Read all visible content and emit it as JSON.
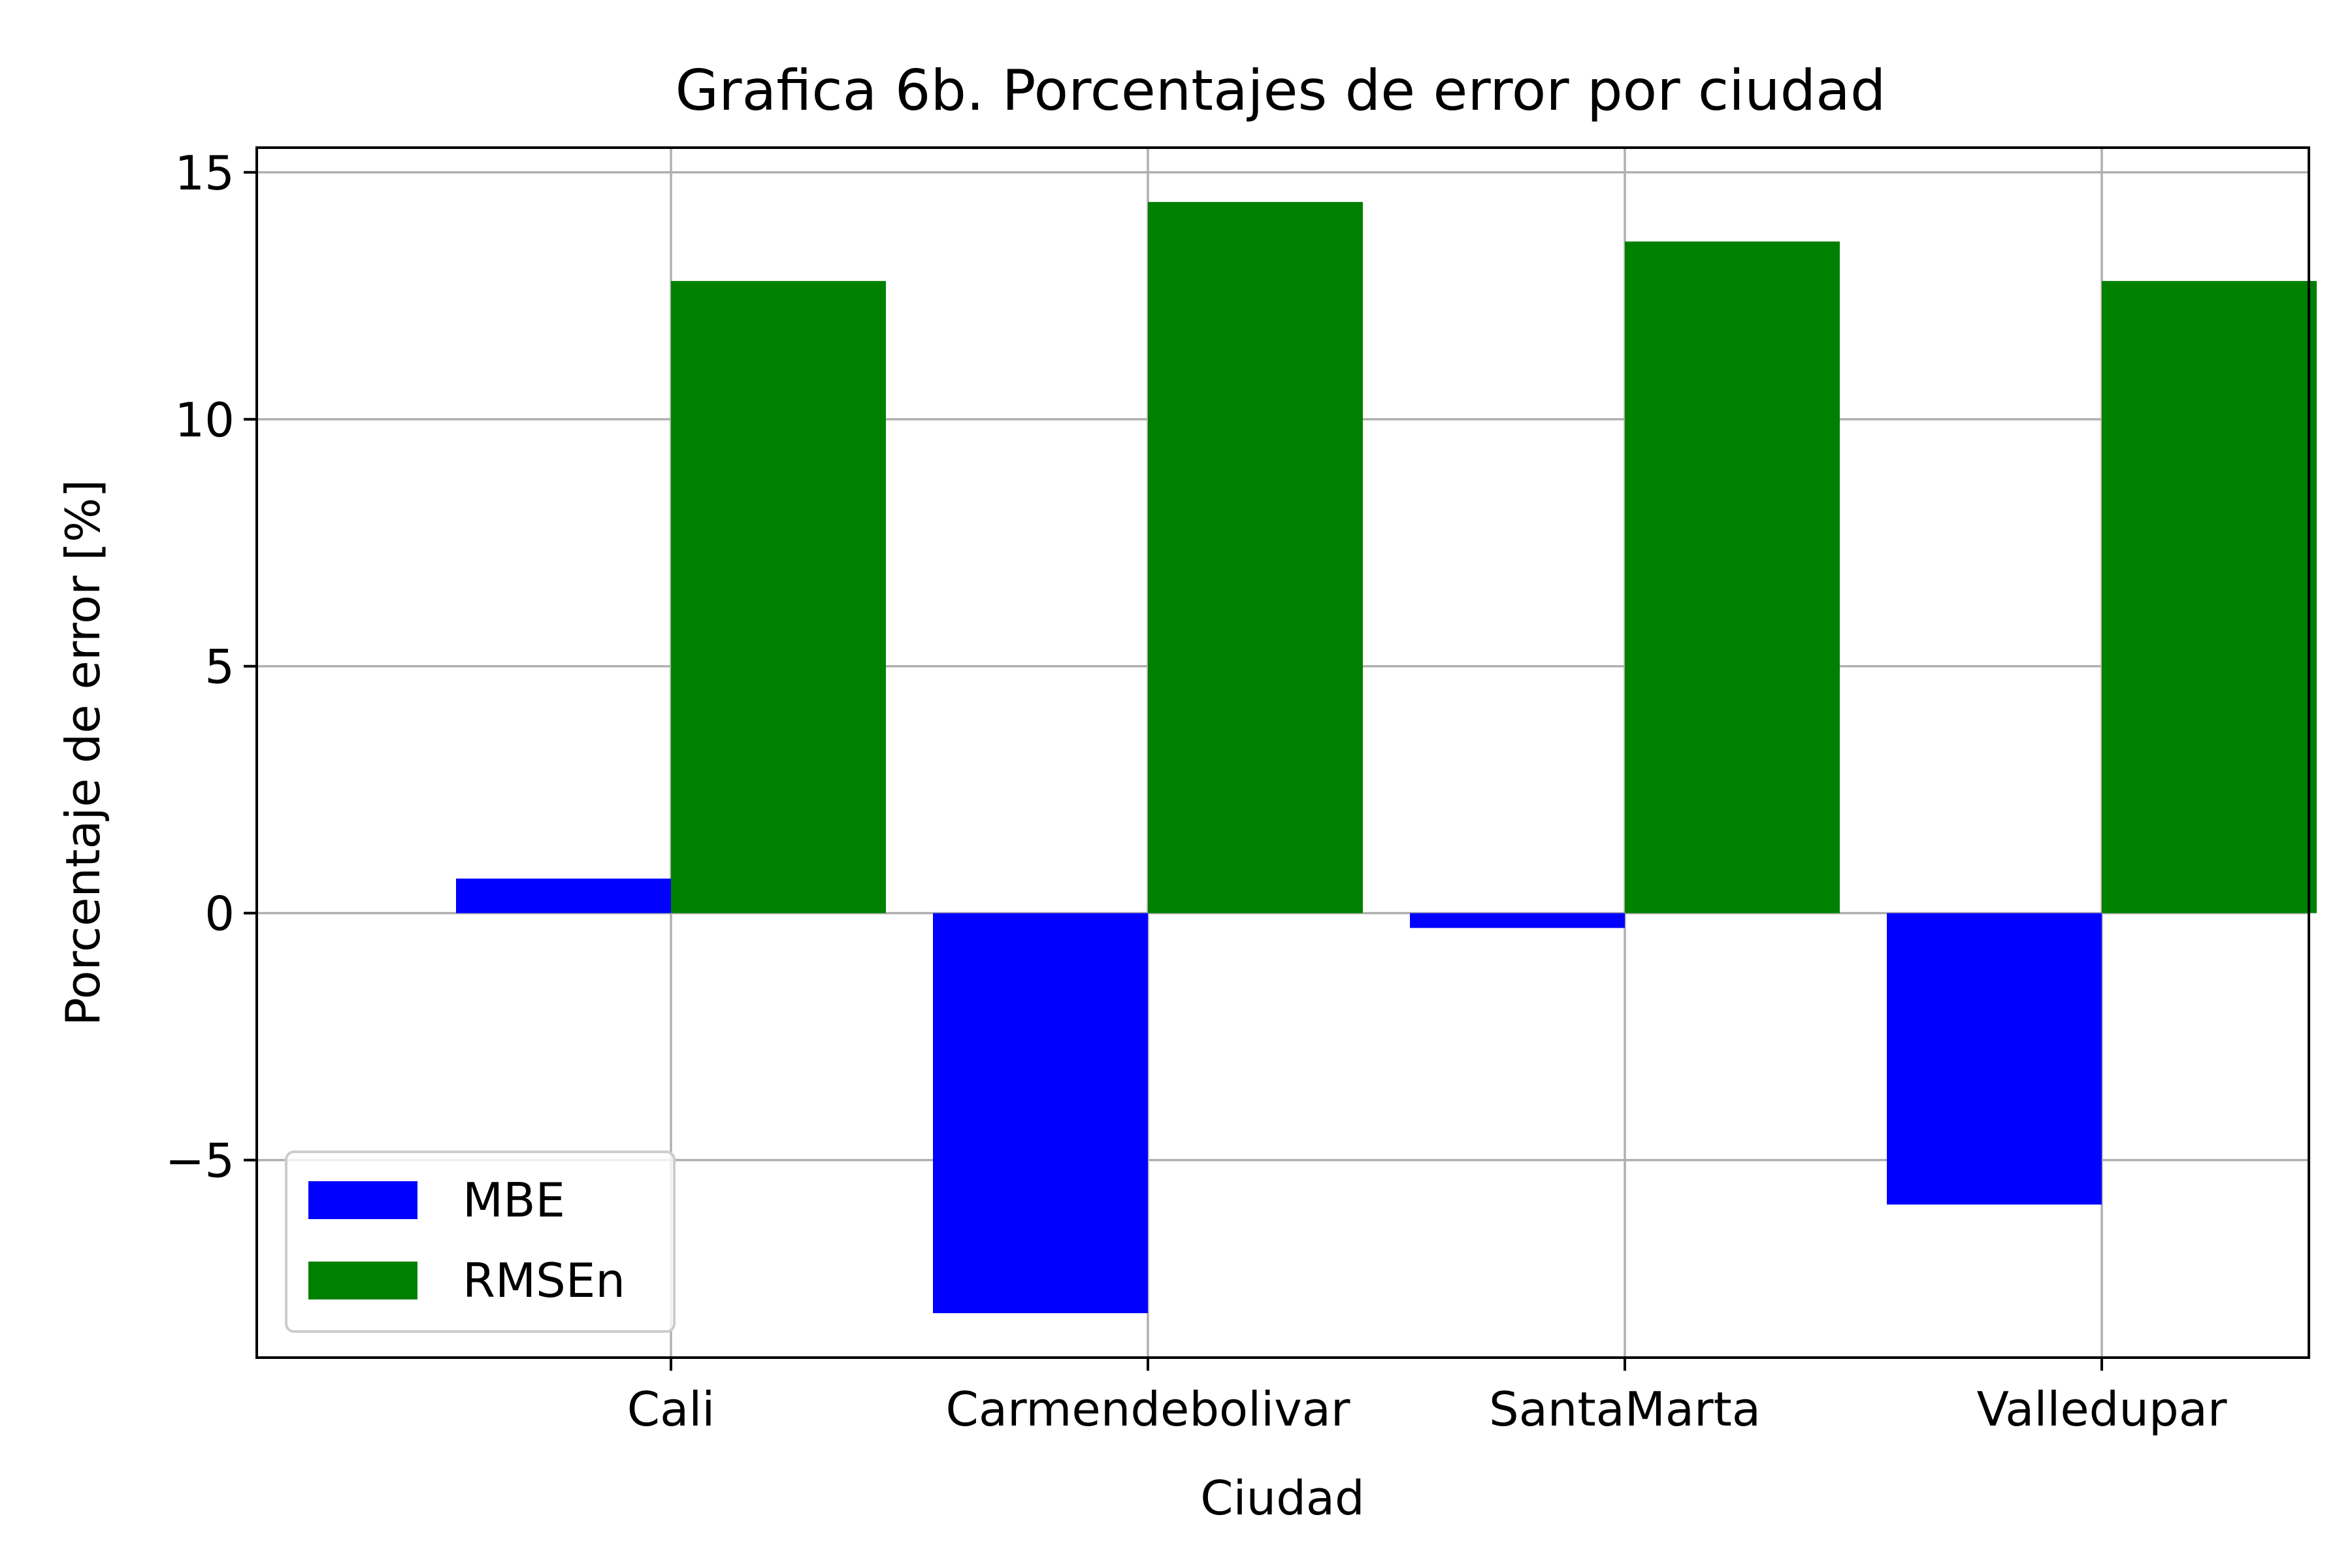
{
  "chart_data": {
    "type": "bar",
    "title": "Grafica 6b. Porcentajes de error por ciudad",
    "xlabel": "Ciudad",
    "ylabel": "Porcentaje de error [%]",
    "categories": [
      "Cali",
      "Carmendebolivar",
      "SantaMarta",
      "Valledupar"
    ],
    "series": [
      {
        "name": "MBE",
        "values": [
          0.7,
          -8.1,
          -0.3,
          -5.9
        ],
        "color": "#0000ff"
      },
      {
        "name": "RMSEn",
        "values": [
          12.8,
          14.4,
          13.6,
          12.8
        ],
        "color": "#008000"
      }
    ],
    "ylim": [
      -9.0,
      15.5
    ],
    "yticks": [
      -5,
      0,
      5,
      10,
      15
    ],
    "ytick_labels": [
      "−5",
      "0",
      "5",
      "10",
      "15"
    ],
    "grid": true,
    "legend_position": "lower-left"
  }
}
